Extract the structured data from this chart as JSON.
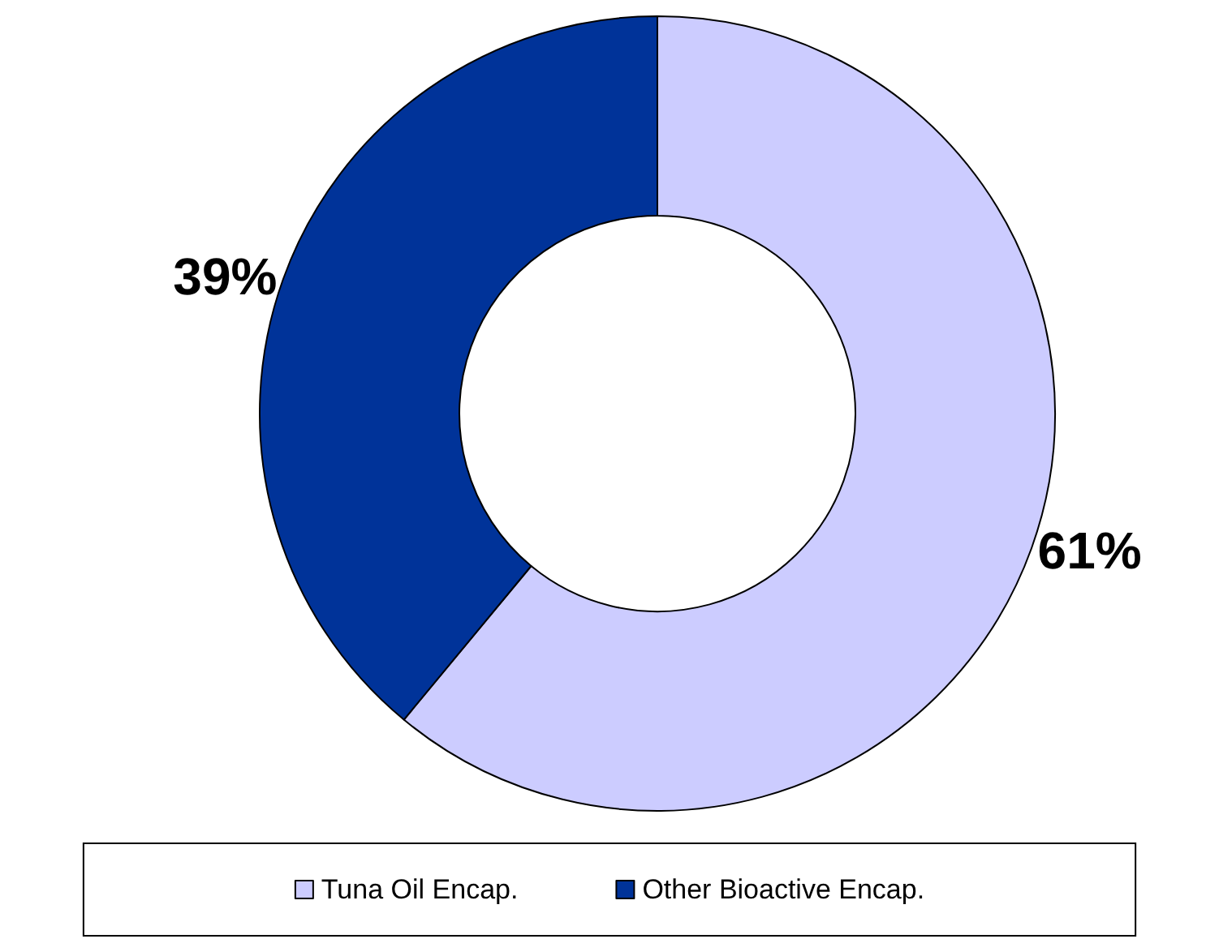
{
  "chart_data": {
    "type": "donut",
    "categories": [
      "Tuna Oil Encap.",
      "Other Bioactive Encap."
    ],
    "values": [
      61,
      39
    ],
    "colors": [
      "#ccccff",
      "#003399"
    ],
    "value_labels": [
      "61%",
      "39%"
    ],
    "legend": "bottom"
  }
}
